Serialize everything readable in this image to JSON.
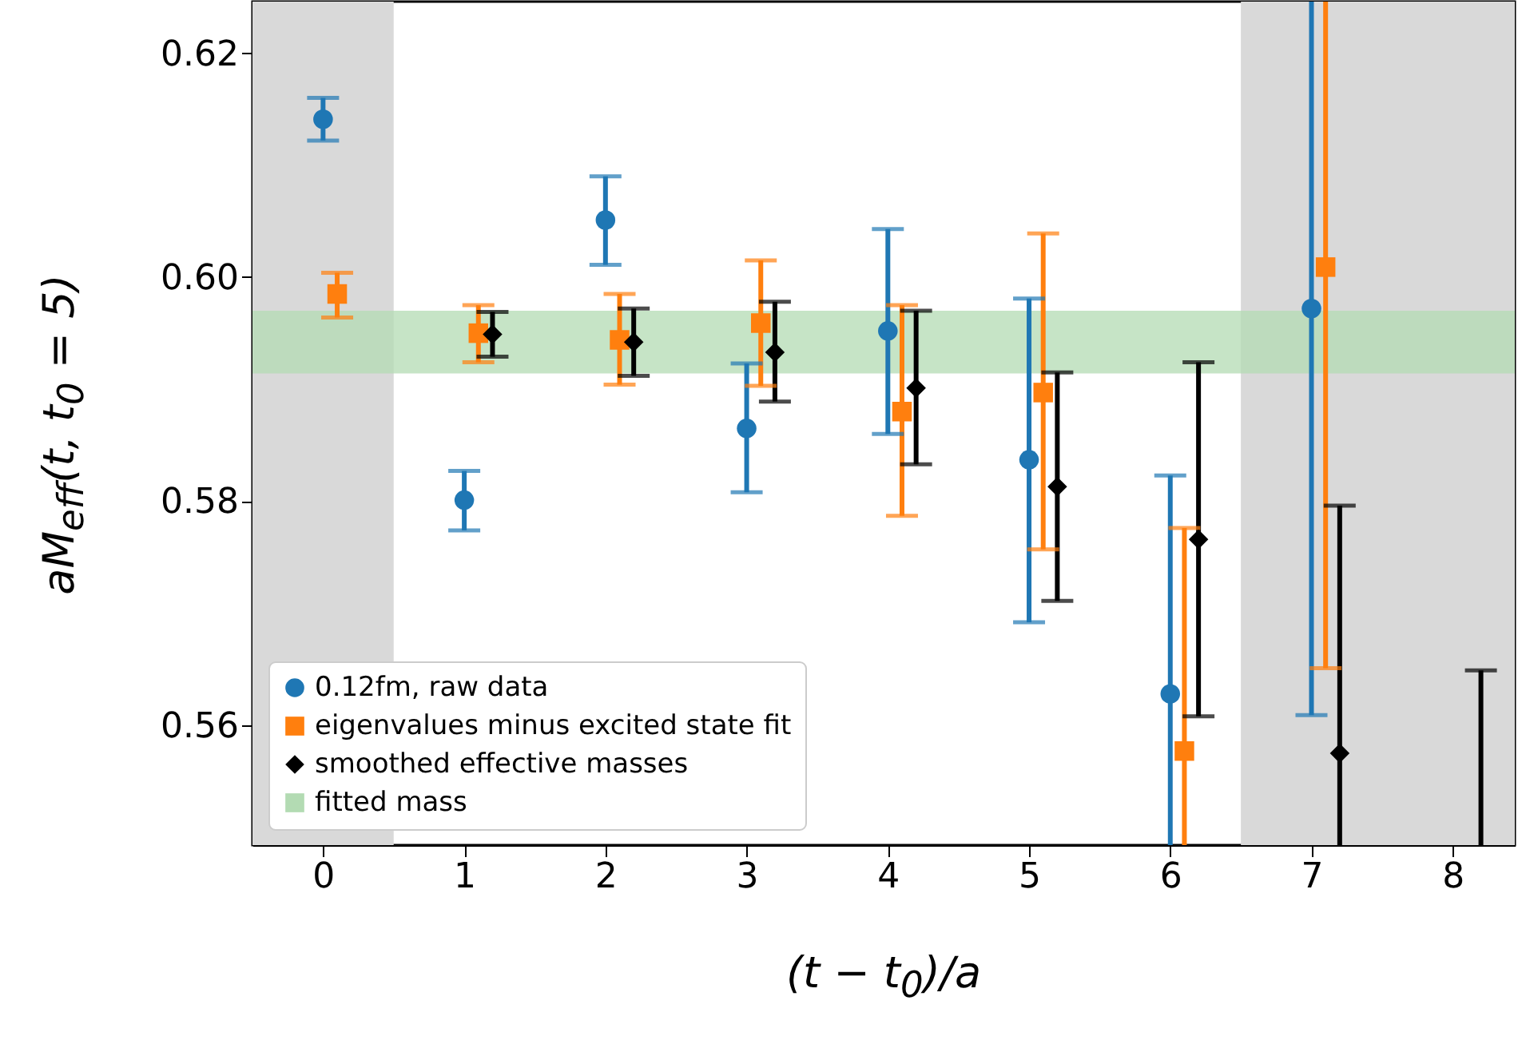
{
  "chart_data": {
    "type": "scatter",
    "xlabel": "(t − t$_{0}$)/a",
    "ylabel": "aM$_{eff}$(t, t$_{0}$ = 5)",
    "xlim": [
      -0.5,
      8.44
    ],
    "ylim": [
      0.5493,
      0.6246
    ],
    "xticks": [
      0,
      1,
      2,
      3,
      4,
      5,
      6,
      7,
      8
    ],
    "yticks": [
      0.56,
      0.58,
      {
        "value": 0.6,
        "label": "0.60"
      },
      0.62
    ],
    "grid": false,
    "legend": "bottom left",
    "bands": [
      {
        "axis": "x",
        "from": -0.5,
        "to": 0.5,
        "color": "#d9d9d9"
      },
      {
        "axis": "x",
        "from": 6.5,
        "to": 8.44,
        "color": "#d9d9d9"
      },
      {
        "axis": "y",
        "from": 0.5914,
        "to": 0.597,
        "label": "fitted mass",
        "color": "#b3dbb3"
      }
    ],
    "series": [
      {
        "name": "0.12fm, raw data",
        "color": "#1f77b4",
        "marker": "circle",
        "x": [
          0,
          1,
          2,
          3,
          4,
          5,
          6,
          7
        ],
        "values": [
          0.6141,
          0.5801,
          0.6051,
          0.5865,
          0.5952,
          0.5837,
          0.5628,
          0.5972
        ],
        "errors": [
          [
            0.6122,
            0.616
          ],
          [
            0.5774,
            0.5827
          ],
          [
            0.6011,
            0.609
          ],
          [
            0.5808,
            0.5923
          ],
          [
            0.586,
            0.6043
          ],
          [
            0.5692,
            0.5981
          ],
          [
            0.5493,
            0.5823
          ],
          [
            0.5609,
            0.6246
          ]
        ]
      },
      {
        "name": "eigenvalues minus excited state fit",
        "color": "#ff7f0e",
        "marker": "square",
        "x": [
          0.1,
          1.1,
          2.1,
          3.1,
          4.1,
          5.1,
          6.1,
          7.1
        ],
        "values": [
          0.5985,
          0.595,
          0.5944,
          0.5959,
          0.588,
          0.5897,
          0.5577,
          0.6009
        ],
        "errors": [
          [
            0.5964,
            0.6004
          ],
          [
            0.5924,
            0.5975
          ],
          [
            0.5904,
            0.5985
          ],
          [
            0.5903,
            0.6015
          ],
          [
            0.5787,
            0.5975
          ],
          [
            0.5757,
            0.6039
          ],
          [
            0.5493,
            0.5776
          ],
          [
            0.5651,
            0.6246
          ]
        ]
      },
      {
        "name": "smoothed effective masses",
        "color": "#000000",
        "marker": "diamond",
        "x": [
          1.2,
          2.2,
          3.2,
          4.2,
          5.2,
          6.2,
          7.2
        ],
        "values": [
          0.5949,
          0.5942,
          0.5933,
          0.5901,
          0.5813,
          0.5766,
          0.5575
        ],
        "errors": [
          [
            0.5929,
            0.5969
          ],
          [
            0.5912,
            0.5972
          ],
          [
            0.5889,
            0.5978
          ],
          [
            0.5833,
            0.597
          ],
          [
            0.5711,
            0.5915
          ],
          [
            0.5608,
            0.5924
          ],
          [
            0.5493,
            0.5796
          ]
        ]
      },
      {
        "type": "line",
        "color": "#000000",
        "marker": "none",
        "x": [
          8.2,
          8.2
        ],
        "values": [
          0.5493,
          0.5649
        ]
      }
    ]
  }
}
